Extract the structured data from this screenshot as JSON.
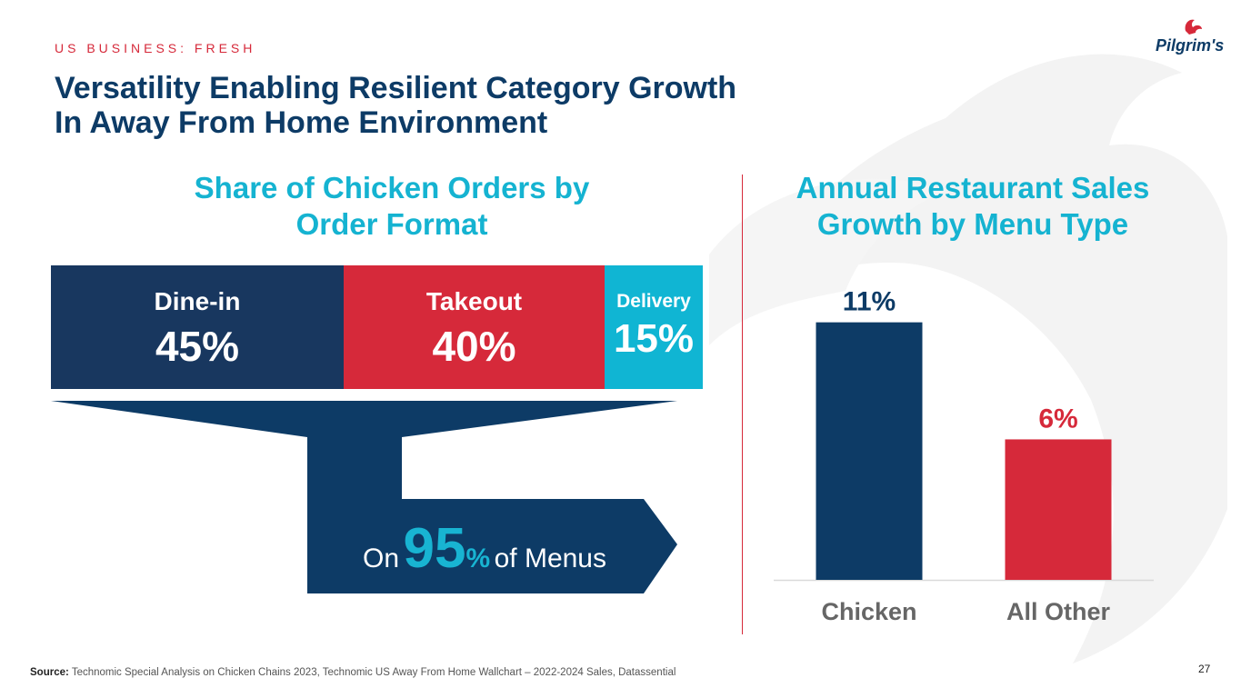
{
  "header": {
    "eyebrow": "US BUSINESS: FRESH",
    "title_line1": "Versatility Enabling Resilient Category Growth",
    "title_line2": "In Away From Home Environment",
    "logo_text": "Pilgrim's"
  },
  "left": {
    "title_line1": "Share of Chicken Orders by",
    "title_line2": "Order Format",
    "segments": [
      {
        "label": "Dine-in",
        "value": "45%"
      },
      {
        "label": "Takeout",
        "value": "40%"
      },
      {
        "label": "Delivery",
        "value": "15%"
      }
    ],
    "menus": {
      "prefix": "On",
      "number": "95",
      "percent": "%",
      "suffix": "of Menus"
    }
  },
  "right": {
    "title_line1": "Annual Restaurant Sales",
    "title_line2": "Growth by Menu Type"
  },
  "chart_data": [
    {
      "type": "bar",
      "orientation": "horizontal-stacked",
      "title": "Share of Chicken Orders by Order Format",
      "categories": [
        "Dine-in",
        "Takeout",
        "Delivery"
      ],
      "values": [
        45,
        40,
        15
      ],
      "unit": "%",
      "annotation": "On 95% of Menus",
      "colors": [
        "#18375f",
        "#d6293a",
        "#10b5d3"
      ]
    },
    {
      "type": "bar",
      "title": "Annual Restaurant Sales Growth by Menu Type",
      "categories": [
        "Chicken",
        "All Other"
      ],
      "values": [
        11,
        6
      ],
      "labels": [
        "11%",
        "6%"
      ],
      "unit": "%",
      "ylim": [
        0,
        12.5
      ],
      "colors": [
        "#0d3b66",
        "#d6293a"
      ],
      "label_colors": [
        "#0d3b66",
        "#d6293a"
      ],
      "grid": false
    }
  ],
  "footer": {
    "source_label": "Source:",
    "source_text": "Technomic Special Analysis on Chicken Chains 2023, Technomic US Away From Home Wallchart – 2022-2024 Sales, Datassential",
    "page_number": "27"
  }
}
